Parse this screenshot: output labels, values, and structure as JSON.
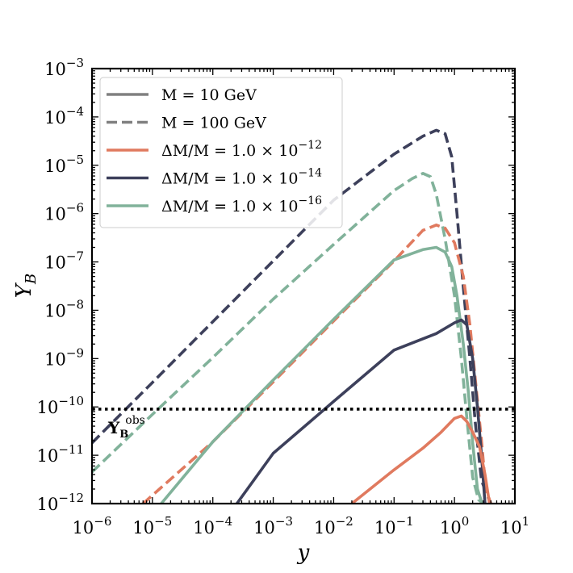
{
  "chart_data": {
    "type": "line",
    "title": "",
    "xlabel": "y",
    "ylabel": "Y",
    "ylabel_sub": "B",
    "x_scale": "log",
    "y_scale": "log",
    "xlim": [
      1e-06,
      10
    ],
    "ylim": [
      1e-12,
      0.001
    ],
    "x_ticks": [
      {
        "value": 1e-06,
        "base": "10",
        "exp": "−6"
      },
      {
        "value": 1e-05,
        "base": "10",
        "exp": "−5"
      },
      {
        "value": 0.0001,
        "base": "10",
        "exp": "−4"
      },
      {
        "value": 0.001,
        "base": "10",
        "exp": "−3"
      },
      {
        "value": 0.01,
        "base": "10",
        "exp": "−2"
      },
      {
        "value": 0.1,
        "base": "10",
        "exp": "−1"
      },
      {
        "value": 1,
        "base": "10",
        "exp": "0"
      },
      {
        "value": 10,
        "base": "10",
        "exp": "1"
      }
    ],
    "y_ticks": [
      {
        "value": 1e-12,
        "base": "10",
        "exp": "−12"
      },
      {
        "value": 1e-11,
        "base": "10",
        "exp": "−11"
      },
      {
        "value": 1e-10,
        "base": "10",
        "exp": "−10"
      },
      {
        "value": 1e-09,
        "base": "10",
        "exp": "−9"
      },
      {
        "value": 1e-08,
        "base": "10",
        "exp": "−8"
      },
      {
        "value": 1e-07,
        "base": "10",
        "exp": "−7"
      },
      {
        "value": 1e-06,
        "base": "10",
        "exp": "−6"
      },
      {
        "value": 1e-05,
        "base": "10",
        "exp": "−5"
      },
      {
        "value": 0.0001,
        "base": "10",
        "exp": "−4"
      },
      {
        "value": 0.001,
        "base": "10",
        "exp": "−3"
      }
    ],
    "grid": false,
    "legend_position": "top-left",
    "legend": [
      {
        "label": "M = 10 GeV",
        "style": "solid",
        "color": "#808080"
      },
      {
        "label": "M = 100 GeV",
        "style": "dashed",
        "color": "#808080"
      },
      {
        "label": "ΔM/M = 1.0 × 10",
        "exp": "−12",
        "style": "solid",
        "color": "#e07a5f"
      },
      {
        "label": "ΔM/M = 1.0 × 10",
        "exp": "−14",
        "style": "solid",
        "color": "#3d405b"
      },
      {
        "label": "ΔM/M = 1.0 × 10",
        "exp": "−16",
        "style": "solid",
        "color": "#81b29a"
      }
    ],
    "reference_line": {
      "value": 9e-11,
      "label": "Y",
      "label_sub": "B",
      "label_sup": "obs",
      "style": "dotted",
      "color": "#000000"
    },
    "series": [
      {
        "mass": "M = 100 GeV",
        "splitting": "1.0e-14",
        "style": "dashed",
        "color": "#3d405b",
        "x": [
          1e-06,
          1e-05,
          0.0001,
          0.001,
          0.01,
          0.1,
          0.3,
          0.5,
          0.7,
          0.9,
          1.1,
          1.4,
          1.8,
          2.2,
          2.8,
          3.4,
          4.0
        ],
        "y": [
          1.8e-11,
          3.2e-10,
          5.8e-09,
          1.05e-07,
          1.9e-06,
          1.7e-05,
          4e-05,
          5.3e-05,
          4.5e-05,
          1.5e-05,
          1e-06,
          3e-08,
          1e-09,
          5e-11,
          3e-12,
          1.6e-12,
          1e-12
        ]
      },
      {
        "mass": "M = 100 GeV",
        "splitting": "1.0e-16",
        "style": "dashed",
        "color": "#81b29a",
        "x": [
          1e-06,
          1e-05,
          0.0001,
          0.001,
          0.01,
          0.1,
          0.2,
          0.3,
          0.4,
          0.5,
          0.7,
          1.0,
          1.3,
          1.6,
          2.0,
          2.5,
          3.0
        ],
        "y": [
          4.5e-12,
          7e-11,
          1.05e-09,
          1.7e-08,
          2.3e-07,
          3e-06,
          5.3e-06,
          6.8e-06,
          5.8e-06,
          2.5e-06,
          3e-07,
          2e-08,
          1e-09,
          6e-11,
          3.5e-12,
          1.2e-12,
          1e-12
        ]
      },
      {
        "mass": "M = 100 GeV",
        "splitting": "1.0e-12",
        "style": "dashed",
        "color": "#e07a5f",
        "x": [
          7e-06,
          0.0001,
          0.001,
          0.01,
          0.1,
          0.3,
          0.5,
          0.7,
          1.0,
          1.4,
          1.8,
          2.2,
          2.8,
          3.3,
          4.0
        ],
        "y": [
          1e-12,
          1.9e-11,
          3.3e-10,
          6e-09,
          1.05e-07,
          4.5e-07,
          5.8e-07,
          5e-07,
          2.5e-07,
          5e-08,
          5e-09,
          4e-10,
          2e-11,
          2e-12,
          1e-12
        ]
      },
      {
        "mass": "M = 10 GeV",
        "splitting": "1.0e-16",
        "style": "solid",
        "color": "#81b29a",
        "x": [
          1.4e-05,
          0.0001,
          0.001,
          0.01,
          0.1,
          0.3,
          0.5,
          0.7,
          0.9,
          1.1,
          1.4,
          1.7,
          2.0,
          2.4,
          2.8,
          3.1
        ],
        "y": [
          1e-12,
          1.9e-11,
          3.6e-10,
          6.5e-09,
          1.1e-07,
          1.8e-07,
          2e-07,
          1.6e-07,
          8e-08,
          2e-08,
          2e-09,
          2e-10,
          1.8e-11,
          2e-12,
          1.1e-12,
          1e-12
        ]
      },
      {
        "mass": "M = 10 GeV",
        "splitting": "1.0e-14",
        "style": "solid",
        "color": "#3d405b",
        "x": [
          0.00025,
          0.001,
          0.01,
          0.1,
          0.5,
          1.0,
          1.3,
          1.6,
          2.0,
          2.4,
          2.8,
          3.2
        ],
        "y": [
          1e-12,
          1.1e-11,
          1.3e-10,
          1.5e-09,
          3.3e-09,
          5.5e-09,
          6.3e-09,
          5e-09,
          1e-09,
          1e-10,
          1e-11,
          1e-12
        ]
      },
      {
        "mass": "M = 10 GeV",
        "splitting": "1.0e-12",
        "style": "solid",
        "color": "#e07a5f",
        "x": [
          0.02,
          0.1,
          0.3,
          0.6,
          1.0,
          1.3,
          1.6,
          2.0,
          2.6,
          3.2,
          3.8
        ],
        "y": [
          1e-12,
          5e-12,
          1.4e-11,
          3e-11,
          5.8e-11,
          6.5e-11,
          5e-11,
          3e-11,
          1.5e-11,
          4e-12,
          1e-12
        ]
      }
    ]
  }
}
